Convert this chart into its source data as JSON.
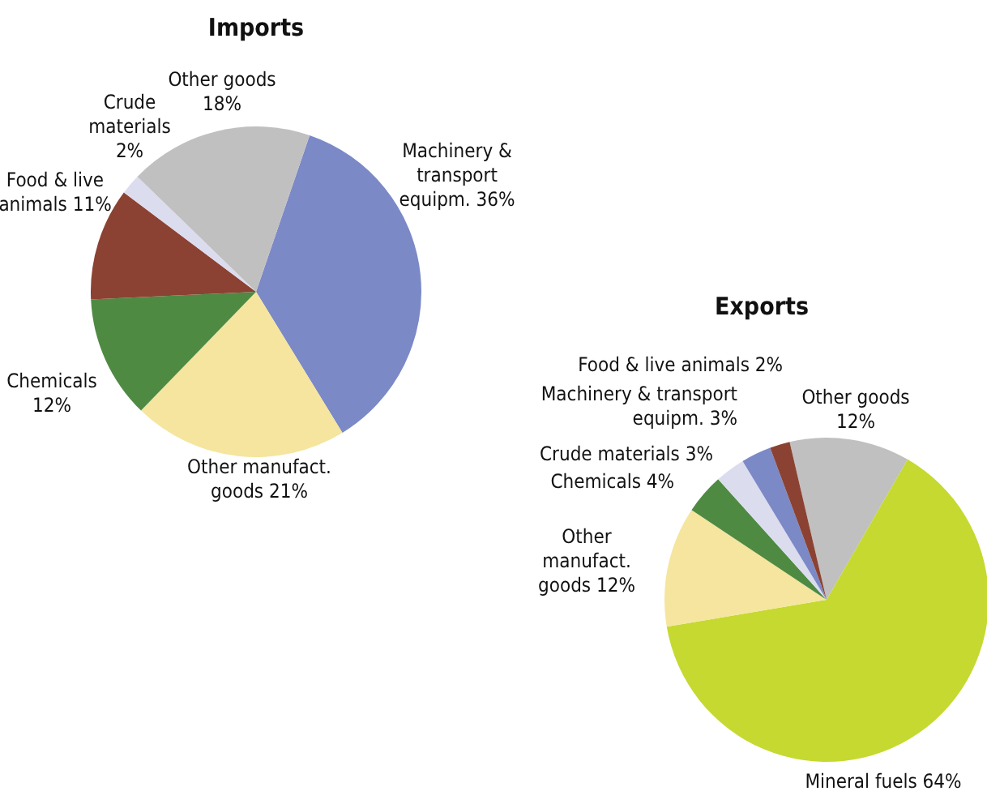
{
  "chart_data": [
    {
      "type": "pie",
      "title": "Imports",
      "categories": [
        "Machinery & transport equipm.",
        "Other manufact. goods",
        "Chemicals",
        "Food & live animals",
        "Crude materials",
        "Other goods"
      ],
      "values": [
        36,
        21,
        12,
        11,
        2,
        18
      ],
      "value_labels": [
        "36%",
        "21%",
        "12%",
        "11%",
        "2%",
        "18%"
      ],
      "colors": [
        "#7b89c6",
        "#f5e59e",
        "#4f8a43",
        "#8b4232",
        "#dcdcef",
        "#c0c0c0"
      ]
    },
    {
      "type": "pie",
      "title": "Exports",
      "categories": [
        "Other goods",
        "Mineral fuels",
        "Other manufact. goods",
        "Chemicals",
        "Crude materials",
        "Machinery & transport equipm.",
        "Food & live animals"
      ],
      "values": [
        12,
        64,
        12,
        4,
        3,
        3,
        2
      ],
      "value_labels": [
        "12%",
        "64%",
        "12%",
        "4%",
        "3%",
        "3%",
        "2%"
      ],
      "colors": [
        "#c0c0c0",
        "#c5d930",
        "#f5e59e",
        "#4f8a43",
        "#dcdcef",
        "#7b89c6",
        "#8b4232"
      ]
    }
  ]
}
